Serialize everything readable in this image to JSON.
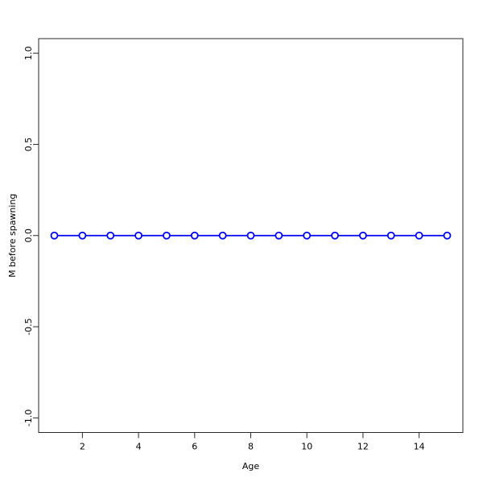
{
  "chart_data": {
    "type": "line",
    "title": "",
    "xlabel": "Age",
    "ylabel": "M before spawning",
    "x": [
      1,
      2,
      3,
      4,
      5,
      6,
      7,
      8,
      9,
      10,
      11,
      12,
      13,
      14,
      15
    ],
    "series": [
      {
        "name": "M before spawning",
        "values": [
          0,
          0,
          0,
          0,
          0,
          0,
          0,
          0,
          0,
          0,
          0,
          0,
          0,
          0,
          0
        ]
      }
    ],
    "xlim": [
      0.44,
      15.56
    ],
    "ylim": [
      -1.08,
      1.08
    ],
    "x_ticks": [
      2,
      4,
      6,
      8,
      10,
      12,
      14
    ],
    "x_tick_labels": [
      "2",
      "4",
      "6",
      "8",
      "10",
      "12",
      "14"
    ],
    "y_ticks": [
      -1.0,
      -0.5,
      0.0,
      0.5,
      1.0
    ],
    "y_tick_labels": [
      "-1.0",
      "-0.5",
      "0.0",
      "0.5",
      "1.0"
    ],
    "grid": false,
    "legend": "none",
    "marker": "open-circle",
    "colors": {
      "line": "#0000ff",
      "marker_stroke": "#0000ff",
      "marker_fill": "#ffffff",
      "axis": "#2a2a2a",
      "text": "#000000",
      "background": "#ffffff"
    }
  }
}
